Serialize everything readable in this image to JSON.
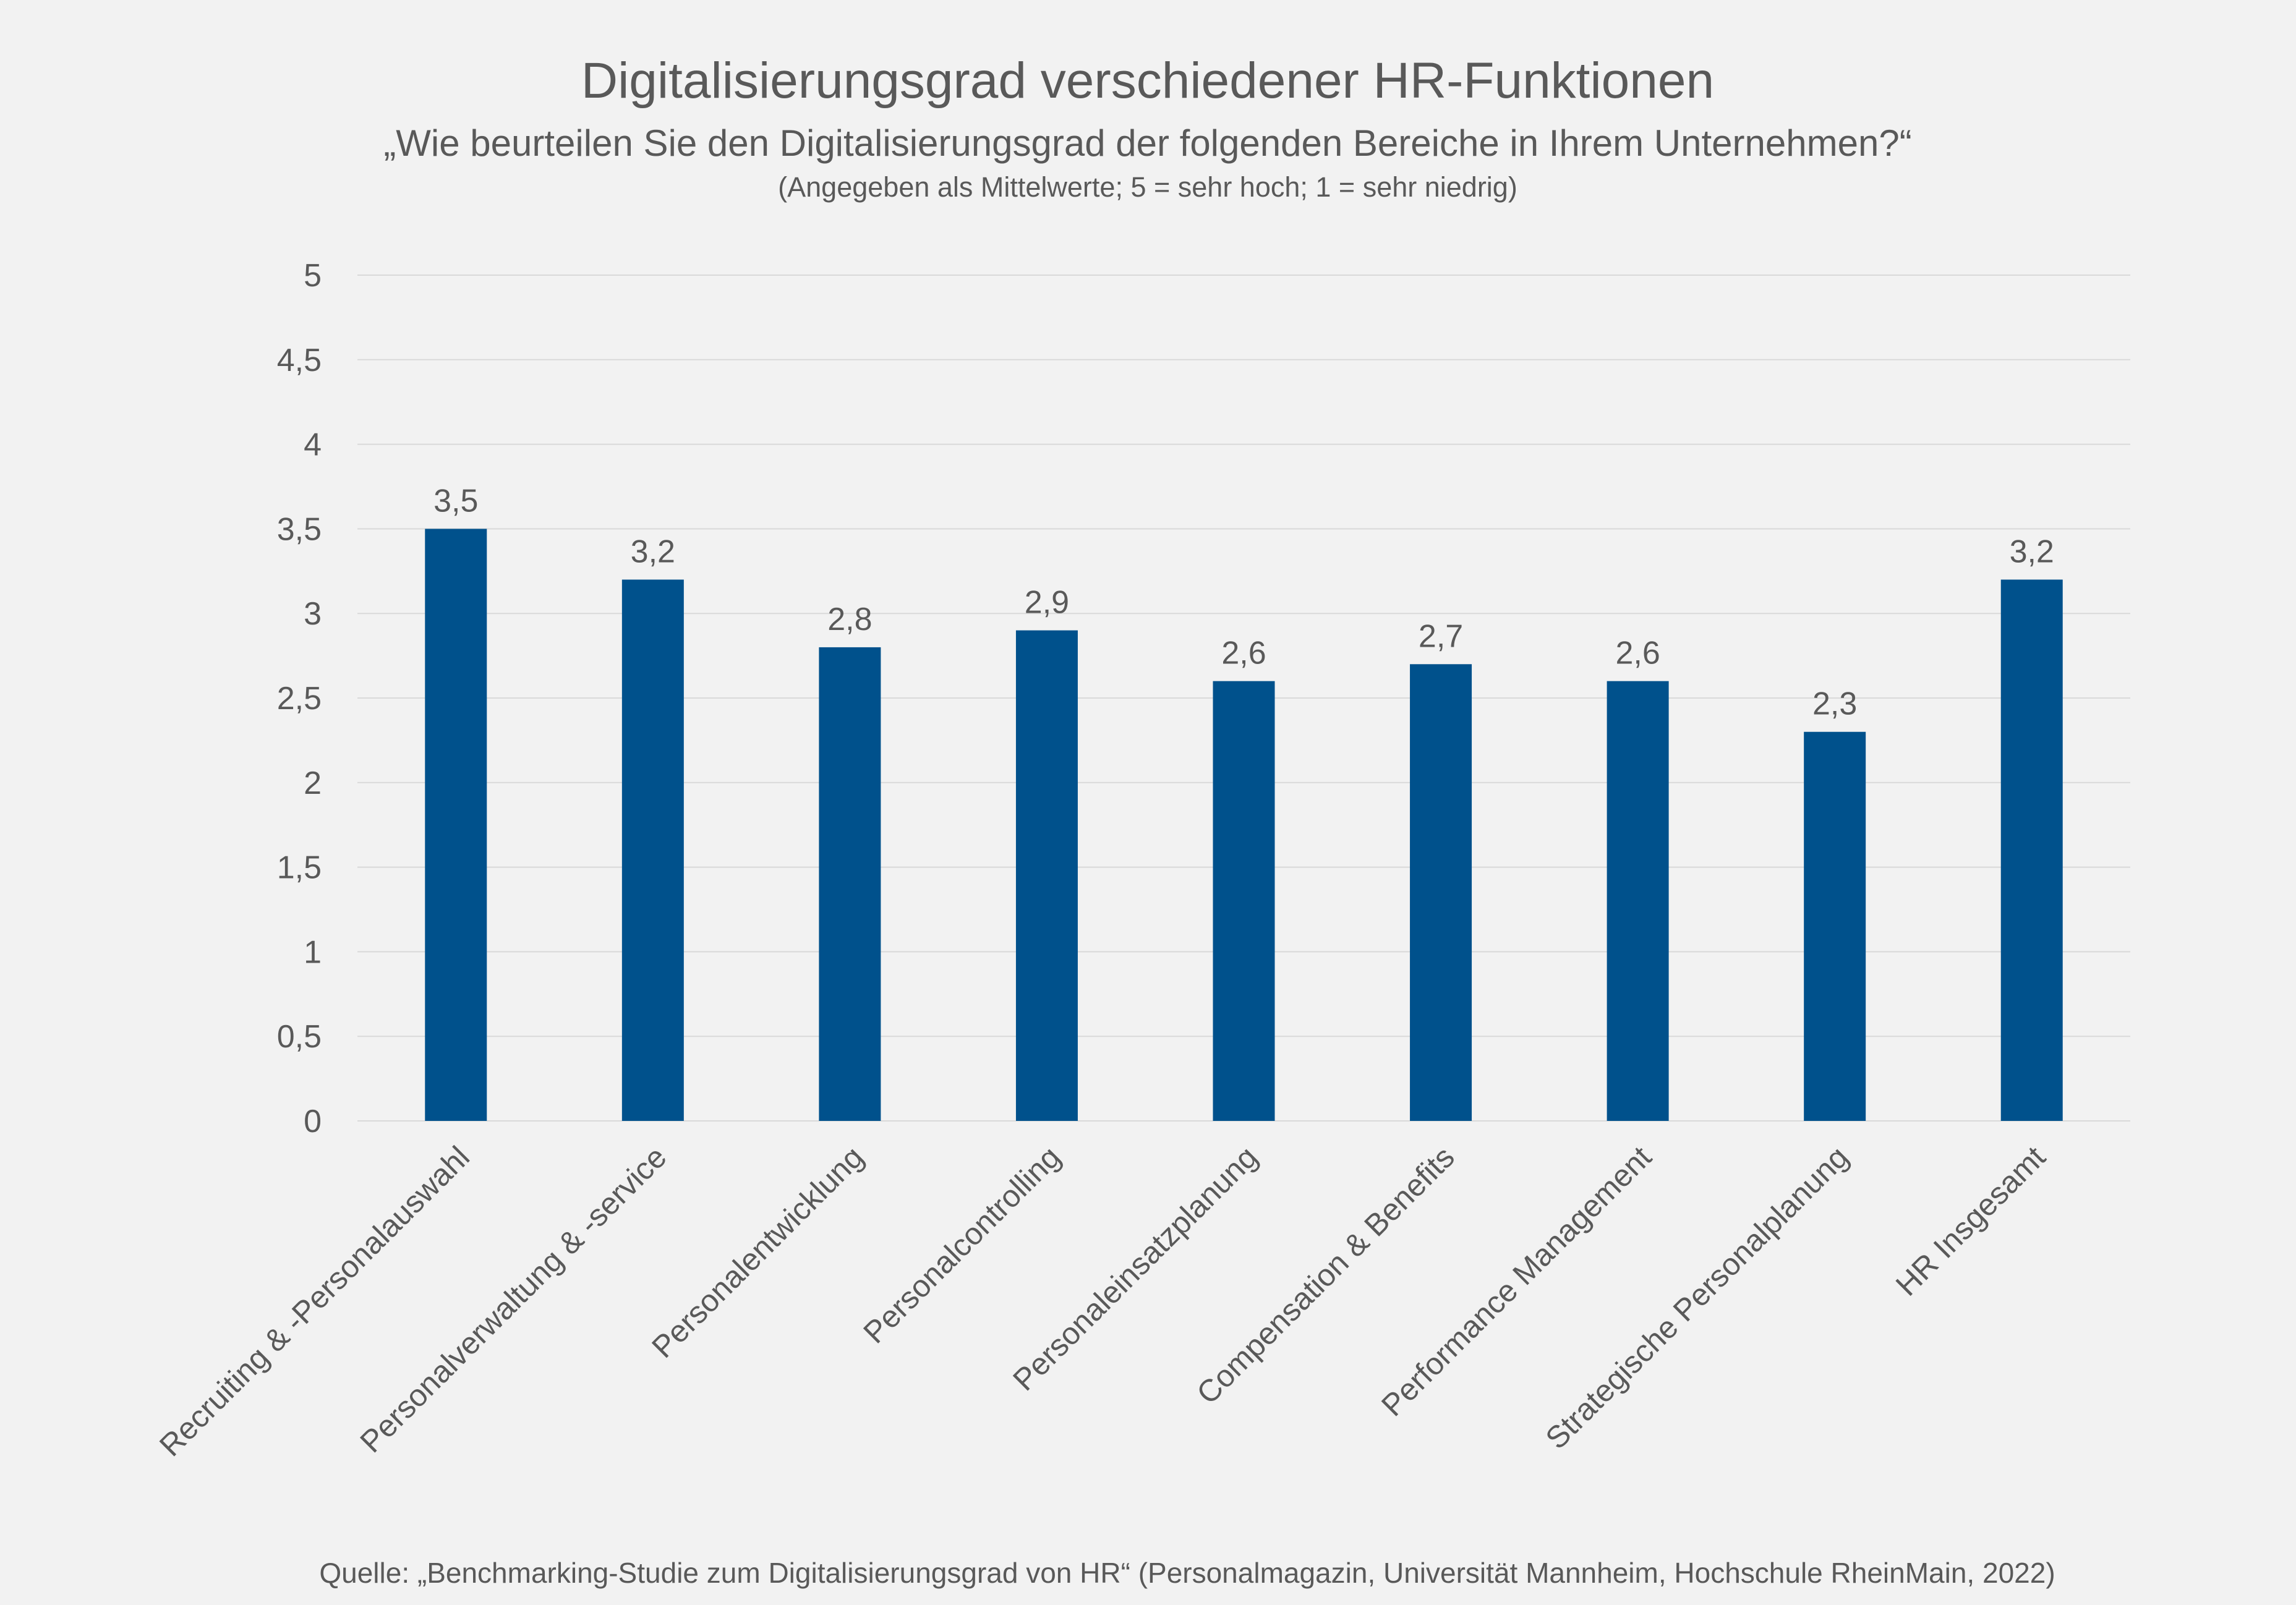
{
  "chart_data": {
    "type": "bar",
    "title": "Digitalisierungsgrad verschiedener HR-Funktionen",
    "subtitle": "„Wie beurteilen Sie den Digitalisierungsgrad der folgenden Bereiche in Ihrem Unternehmen?“",
    "note": "(Angegeben als Mittelwerte; 5 = sehr hoch; 1 = sehr niedrig)",
    "categories": [
      "Recruiting & -Personalauswahl",
      "Personalverwaltung & -service",
      "Personalentwicklung",
      "Personalcontrolling",
      "Personaleinsatzplanung",
      "Compensation & Benefits",
      "Performance Management",
      "Strategische Personalplanung",
      "HR Insgesamt"
    ],
    "values": [
      3.5,
      3.2,
      2.8,
      2.9,
      2.6,
      2.7,
      2.6,
      2.3,
      3.2
    ],
    "data_labels": [
      "3,5",
      "3,2",
      "2,8",
      "2,9",
      "2,6",
      "2,7",
      "2,6",
      "2,3",
      "3,2"
    ],
    "yticks": [
      0,
      0.5,
      1,
      1.5,
      2,
      2.5,
      3,
      3.5,
      4,
      4.5,
      5
    ],
    "ytick_labels": [
      "0",
      "0,5",
      "1",
      "1,5",
      "2",
      "2,5",
      "3",
      "3,5",
      "4",
      "4,5",
      "5"
    ],
    "ylim": [
      0,
      5
    ],
    "xlabel": "",
    "ylabel": "",
    "grid": true,
    "legend": "none",
    "source": "Quelle: „Benchmarking-Studie zum Digitalisierungsgrad von HR“ (Personalmagazin, Universität Mannheim, Hochschule RheinMain, 2022)",
    "colors": {
      "bar": "#00518c",
      "background": "#f2f2f2",
      "grid": "#d9d9d9",
      "text": "#595959",
      "title": "#595959"
    }
  }
}
